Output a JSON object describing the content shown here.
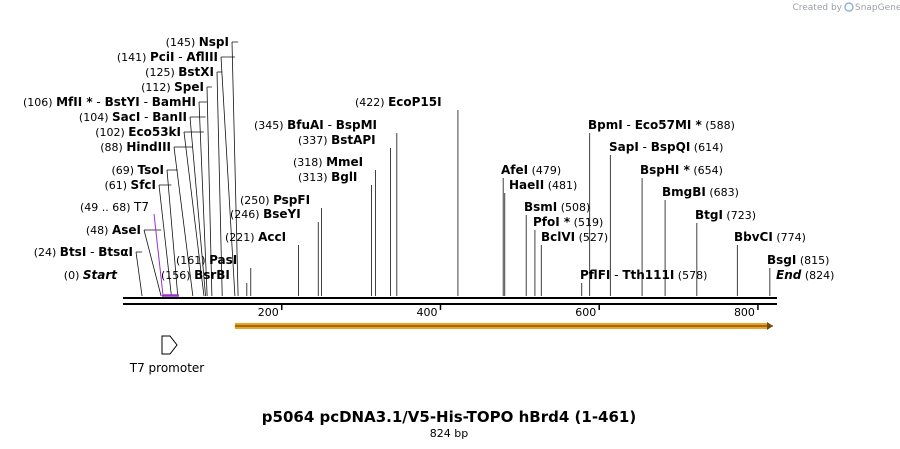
{
  "credit": "Created by",
  "brand": "SnapGene",
  "title": "p5064 pcDNA3.1/V5-His-TOPO hBrd4 (1-461)",
  "subtitle": "824 bp",
  "sequence_length": 824,
  "axis_ticks": [
    200,
    400,
    600,
    800
  ],
  "start_label": {
    "pos": "(0)",
    "name": "Start",
    "bp": 0
  },
  "end_label": {
    "pos": "(824)",
    "name": "End",
    "bp": 824
  },
  "feature": {
    "name": "T7",
    "range": "(49 .. 68)",
    "start": 49,
    "end": 68,
    "color": "#9b30d0"
  },
  "promoter": {
    "name": "T7 promoter",
    "bp": 49
  },
  "orf": {
    "start": 141,
    "end": 824,
    "color": "#f0a020"
  },
  "left_labels": [
    {
      "pos": "(145)",
      "names": [
        "NspI"
      ],
      "bp": 145
    },
    {
      "pos": "(141)",
      "names": [
        "PciI",
        "AflIII"
      ],
      "bp": 141
    },
    {
      "pos": "(125)",
      "names": [
        "BstXI"
      ],
      "bp": 125
    },
    {
      "pos": "(112)",
      "names": [
        "SpeI"
      ],
      "bp": 112
    },
    {
      "pos": "(106)",
      "names": [
        "MfII *",
        "BstYI",
        "BamHI"
      ],
      "bp": 106
    },
    {
      "pos": "(104)",
      "names": [
        "SacI",
        "BanII"
      ],
      "bp": 104
    },
    {
      "pos": "(102)",
      "names": [
        "Eco53kI"
      ],
      "bp": 102
    },
    {
      "pos": "(88)",
      "names": [
        "HindIII"
      ],
      "bp": 88
    },
    {
      "pos": "(69)",
      "names": [
        "TsoI"
      ],
      "bp": 69
    },
    {
      "pos": "(61)",
      "names": [
        "SfcI"
      ],
      "bp": 61
    },
    {
      "pos": "(48)",
      "names": [
        "AseI"
      ],
      "bp": 48
    },
    {
      "pos": "(24)",
      "names": [
        "BtsI",
        "BtsαI"
      ],
      "bp": 24
    }
  ],
  "mid_labels": [
    {
      "pos": "(422)",
      "names": [
        "EcoP15I"
      ],
      "bp": 422
    },
    {
      "pos": "(345)",
      "names": [
        "BfuAI",
        "BspMI"
      ],
      "bp": 345
    },
    {
      "pos": "(337)",
      "names": [
        "BstAPI"
      ],
      "bp": 337
    },
    {
      "pos": "(318)",
      "names": [
        "MmeI"
      ],
      "bp": 318
    },
    {
      "pos": "(313)",
      "names": [
        "BglI"
      ],
      "bp": 313
    },
    {
      "pos": "(250)",
      "names": [
        "PspFI"
      ],
      "bp": 250
    },
    {
      "pos": "(246)",
      "names": [
        "BseYI"
      ],
      "bp": 246
    },
    {
      "pos": "(221)",
      "names": [
        "AccI"
      ],
      "bp": 221
    },
    {
      "pos": "(161)",
      "names": [
        "PasI"
      ],
      "bp": 161
    },
    {
      "pos": "(156)",
      "names": [
        "BsrBI"
      ],
      "bp": 156
    }
  ],
  "right_labels": [
    {
      "pos": "(588)",
      "names": [
        "BpmI",
        "Eco57MI *"
      ],
      "bp": 588
    },
    {
      "pos": "(614)",
      "names": [
        "SapI",
        "BspQI"
      ],
      "bp": 614
    },
    {
      "pos": "(479)",
      "names": [
        "AfeI"
      ],
      "bp": 479
    },
    {
      "pos": "(654)",
      "names": [
        "BspHI *"
      ],
      "bp": 654
    },
    {
      "pos": "(481)",
      "names": [
        "HaeII"
      ],
      "bp": 481
    },
    {
      "pos": "(683)",
      "names": [
        "BmgBI"
      ],
      "bp": 683
    },
    {
      "pos": "(508)",
      "names": [
        "BsmI"
      ],
      "bp": 508
    },
    {
      "pos": "(519)",
      "names": [
        "PfoI *"
      ],
      "bp": 519
    },
    {
      "pos": "(723)",
      "names": [
        "BtgI"
      ],
      "bp": 723
    },
    {
      "pos": "(527)",
      "names": [
        "BclVI"
      ],
      "bp": 527
    },
    {
      "pos": "(774)",
      "names": [
        "BbvCI"
      ],
      "bp": 774
    },
    {
      "pos": "(815)",
      "names": [
        "BsgI"
      ],
      "bp": 815
    },
    {
      "pos": "(578)",
      "names": [
        "PflFI",
        "Tth111I"
      ],
      "bp": 578
    }
  ]
}
